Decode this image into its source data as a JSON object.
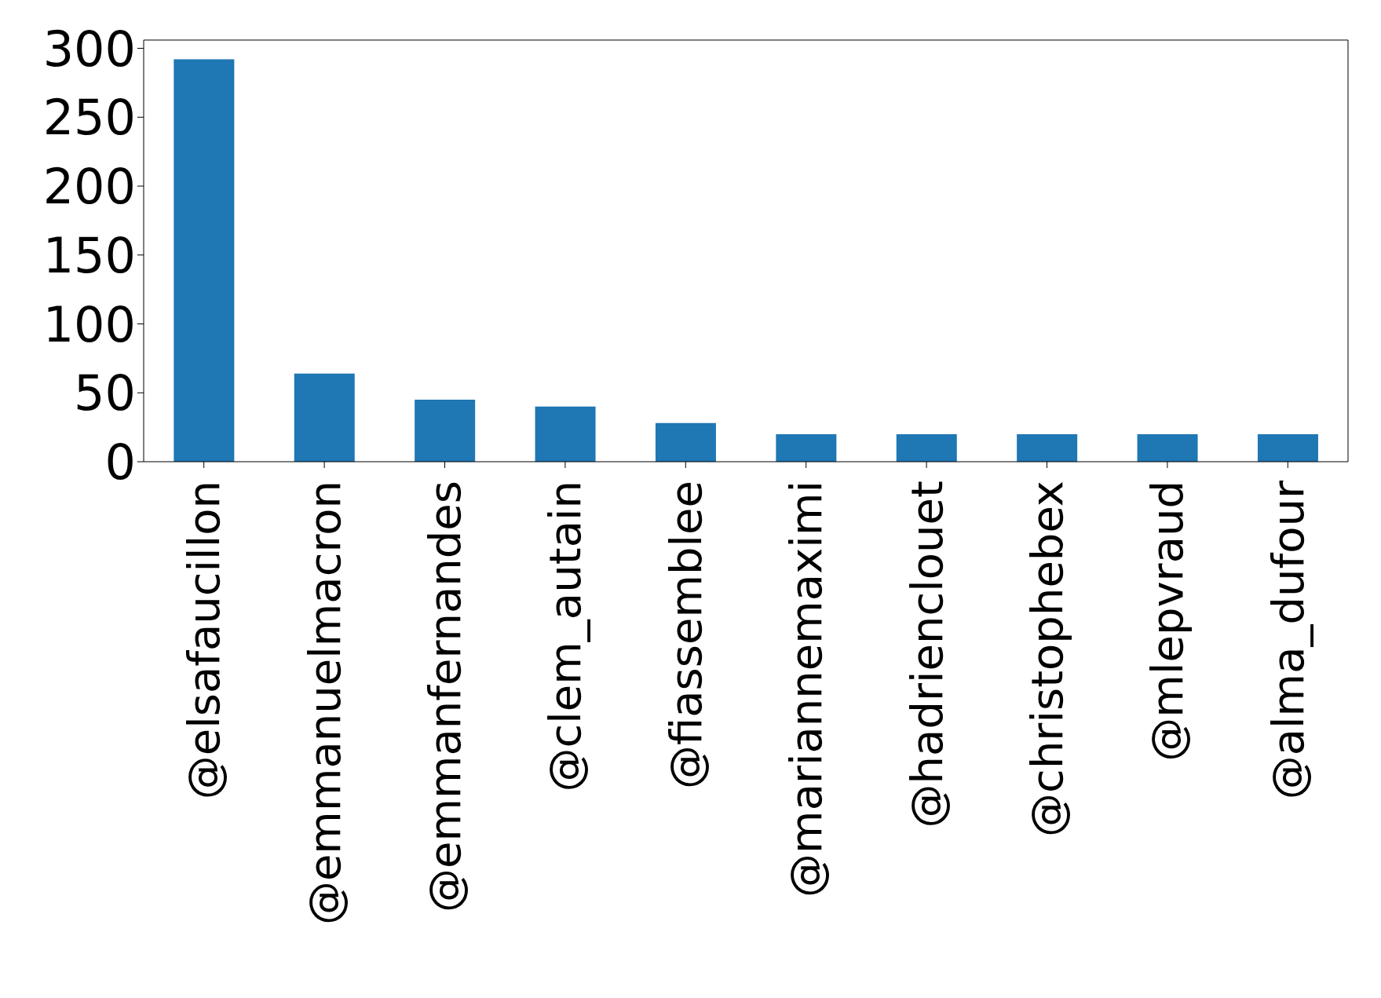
{
  "chart_data": {
    "type": "bar",
    "categories": [
      "@elsafaucillon",
      "@emmanuelmacron",
      "@emmanfernandes",
      "@clem_autain",
      "@fiassemblee",
      "@mariannemaximi",
      "@hadrienclouet",
      "@christophebex",
      "@mlepvraud",
      "@alma_dufour"
    ],
    "values": [
      292,
      64,
      45,
      40,
      28,
      20,
      20,
      20,
      20,
      20
    ],
    "color": "#1f77b4",
    "ylim": [
      0,
      306
    ],
    "yticks": [
      0,
      50,
      100,
      150,
      200,
      250,
      300
    ],
    "grid": false
  }
}
